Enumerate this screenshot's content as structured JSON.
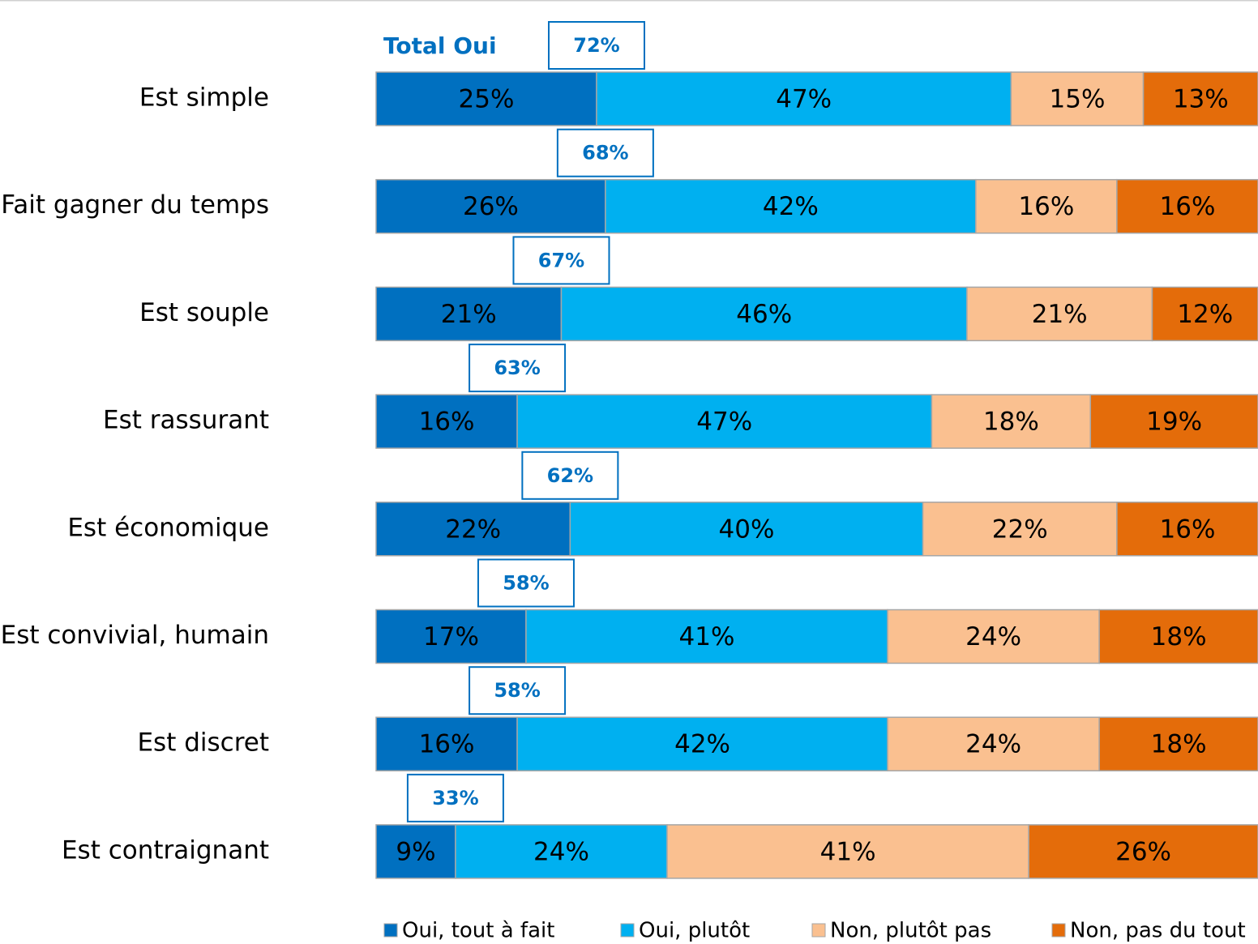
{
  "chart_data": {
    "type": "stacked-bar-horizontal",
    "categories": [
      "Est simple",
      "Fait gagner du temps",
      "Est souple",
      "Est rassurant",
      "Est économique",
      "Est convivial, humain",
      "Est discret",
      "Est contraignant"
    ],
    "series": [
      {
        "name": "Oui, tout à fait",
        "color": "#0070c0",
        "values": [
          25,
          26,
          21,
          16,
          22,
          17,
          16,
          9
        ],
        "value_labels": [
          "25%",
          "26%",
          "21%",
          "16%",
          "22%",
          "17%",
          "16%",
          "9%"
        ]
      },
      {
        "name": "Oui, plutôt",
        "color": "#00b0f0",
        "values": [
          47,
          42,
          46,
          47,
          40,
          41,
          42,
          24
        ],
        "value_labels": [
          "47%",
          "42%",
          "46%",
          "47%",
          "40%",
          "41%",
          "42%",
          "24%"
        ]
      },
      {
        "name": "Non, plutôt pas",
        "color": "#fac090",
        "values": [
          15,
          16,
          21,
          18,
          22,
          24,
          24,
          41
        ],
        "value_labels": [
          "15%",
          "16%",
          "21%",
          "18%",
          "22%",
          "24%",
          "24%",
          "41%"
        ]
      },
      {
        "name": "Non, pas du tout",
        "color": "#e46c0a",
        "values": [
          13,
          16,
          12,
          19,
          16,
          18,
          18,
          26
        ],
        "value_labels": [
          "13%",
          "16%",
          "12%",
          "19%",
          "16%",
          "18%",
          "18%",
          "26%"
        ]
      }
    ],
    "totals": {
      "label": "Total Oui",
      "color": "#0070c0",
      "values": [
        72,
        68,
        67,
        63,
        62,
        58,
        58,
        33
      ],
      "value_labels": [
        "72%",
        "68%",
        "67%",
        "63%",
        "62%",
        "58%",
        "58%",
        "33%"
      ]
    },
    "xlim": [
      0,
      100
    ],
    "legend": "bottom"
  }
}
